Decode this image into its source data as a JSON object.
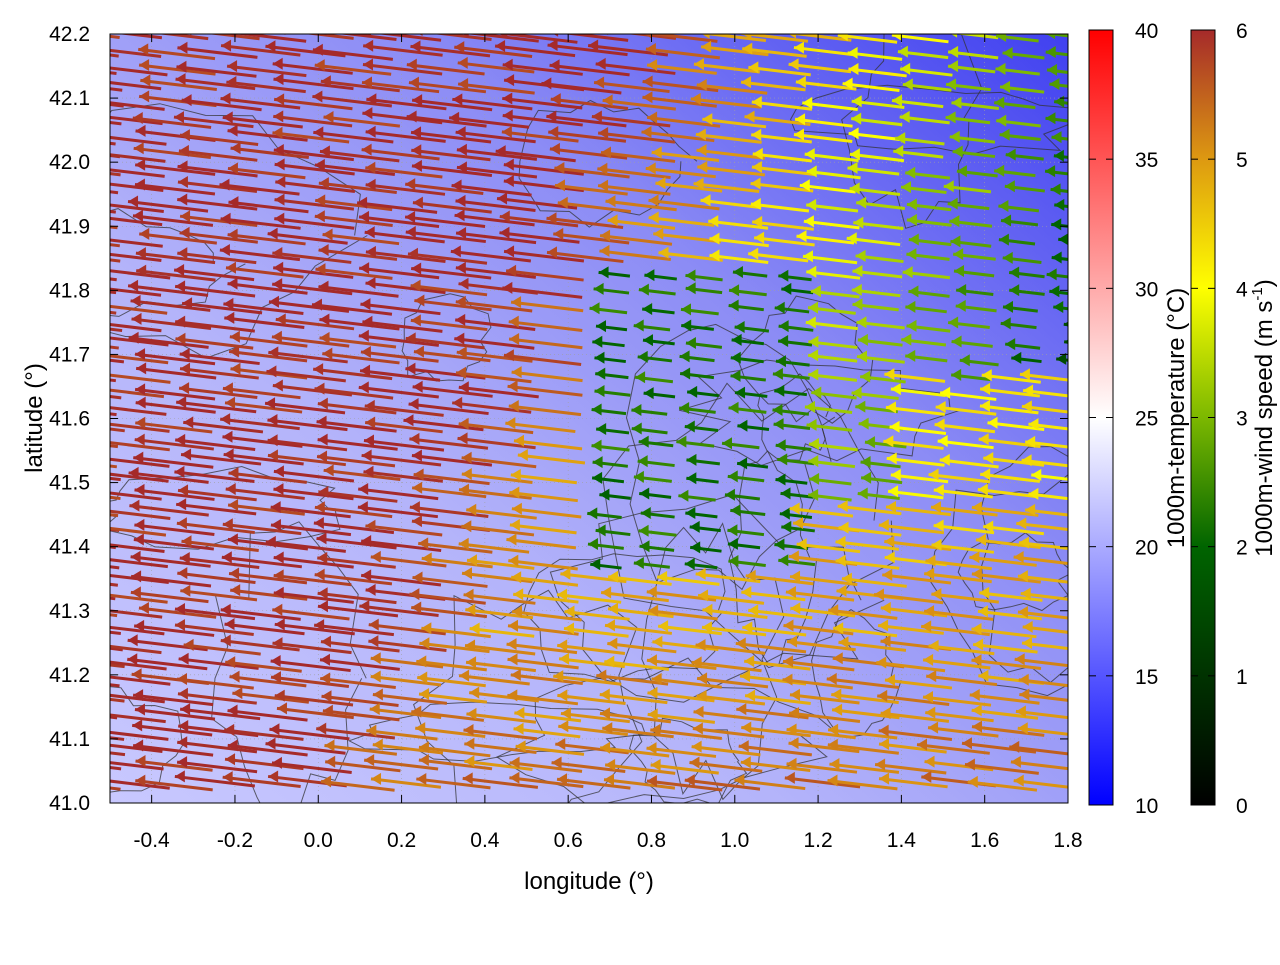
{
  "chart_data": {
    "type": "heatmap",
    "subtype": "wind-vector field over temperature map with terrain contours",
    "xlabel": "longitude (°)",
    "ylabel": "latitude (°)",
    "xlim": [
      -0.5,
      1.8
    ],
    "ylim": [
      41.0,
      42.2
    ],
    "x_ticks": [
      "-0.4",
      "-0.2",
      "0.0",
      "0.2",
      "0.4",
      "0.6",
      "0.8",
      "1.0",
      "1.2",
      "1.4",
      "1.6",
      "1.8"
    ],
    "x_tick_values": [
      -0.4,
      -0.2,
      0.0,
      0.2,
      0.4,
      0.6,
      0.8,
      1.0,
      1.2,
      1.4,
      1.6,
      1.8
    ],
    "y_ticks": [
      "41.0",
      "41.1",
      "41.2",
      "41.3",
      "41.4",
      "41.5",
      "41.6",
      "41.7",
      "41.8",
      "41.9",
      "42.0",
      "42.1",
      "42.2"
    ],
    "y_tick_values": [
      41.0,
      41.1,
      41.2,
      41.3,
      41.4,
      41.5,
      41.6,
      41.7,
      41.8,
      41.9,
      42.0,
      42.1,
      42.2
    ],
    "grid": true,
    "temperature_colorbar": {
      "label": "1000m-temperature (°C)",
      "range": [
        10,
        40
      ],
      "ticks": [
        "10",
        "15",
        "20",
        "25",
        "30",
        "35",
        "40"
      ],
      "tick_values": [
        10,
        15,
        20,
        25,
        30,
        35,
        40
      ],
      "colors": [
        "#0000ff",
        "#ffffff",
        "#ff0000"
      ]
    },
    "wind_colorbar": {
      "label": "1000m-wind speed (m s",
      "label_sup": "-1",
      "label_end": ")",
      "range": [
        0,
        6
      ],
      "ticks": [
        "0",
        "1",
        "2",
        "3",
        "4",
        "5",
        "6"
      ],
      "tick_values": [
        0,
        1,
        2,
        3,
        4,
        5,
        6
      ],
      "colors": [
        "#000000",
        "#006400",
        "#7cb800",
        "#ffff00",
        "#dd9911",
        "#a52a2a"
      ]
    },
    "temperature_field_estimate": "about 18-22 °C in the south-west, 13-15 °C in the north-east",
    "wind_field_estimate": "westward flow; about 6 m/s in the west and south, 1-3 m/s in the north-east and centre-east",
    "contour_color": "#333333"
  }
}
